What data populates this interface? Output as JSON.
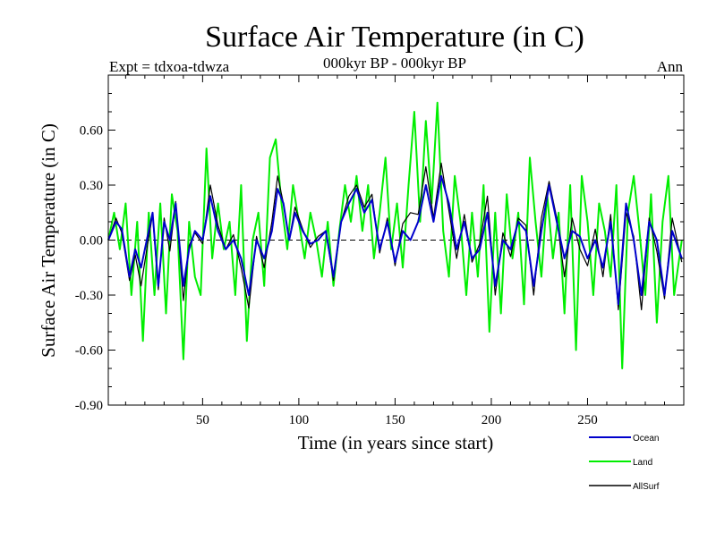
{
  "chart_data": {
    "type": "line",
    "title": "Surface Air Temperature (in C)",
    "subtitle": "000kyr BP - 000kyr BP",
    "left_label": "Expt = tdxoa-tdwza",
    "right_label": "Ann",
    "xlabel": "Time (in years since start)",
    "ylabel": "Surface Air Temperature (in C)",
    "xlim": [
      1,
      300
    ],
    "ylim": [
      -0.9,
      0.9
    ],
    "x_ticks": [
      50,
      100,
      150,
      200,
      250
    ],
    "x_tick_labels": [
      "50",
      "100",
      "150",
      "200",
      "250"
    ],
    "y_ticks": [
      -0.9,
      -0.6,
      -0.3,
      0.0,
      0.3,
      0.6
    ],
    "y_tick_labels": [
      "-0.90",
      "-0.60",
      "-0.30",
      "0.00",
      "0.30",
      "0.60"
    ],
    "zero_line": "dashed",
    "grid": false,
    "legend_position": "bottom-right, below plot",
    "series": [
      {
        "name": "Ocean",
        "color": "#0000cc",
        "x": [
          1,
          5,
          8,
          12,
          15,
          18,
          21,
          24,
          27,
          30,
          33,
          36,
          40,
          43,
          46,
          50,
          54,
          58,
          62,
          66,
          70,
          74,
          78,
          82,
          86,
          89,
          92,
          95,
          98,
          102,
          106,
          110,
          114,
          118,
          122,
          126,
          130,
          134,
          138,
          142,
          146,
          150,
          154,
          158,
          162,
          166,
          170,
          174,
          178,
          182,
          186,
          190,
          194,
          198,
          202,
          206,
          210,
          214,
          218,
          222,
          226,
          230,
          234,
          238,
          242,
          246,
          250,
          254,
          258,
          262,
          266,
          270,
          274,
          278,
          282,
          286,
          290,
          294,
          299
        ],
        "y": [
          0.0,
          0.1,
          0.06,
          -0.2,
          -0.05,
          -0.15,
          0.0,
          0.15,
          -0.25,
          0.1,
          0.0,
          0.2,
          -0.25,
          -0.05,
          0.05,
          0.0,
          0.24,
          0.05,
          -0.05,
          0.0,
          -0.1,
          -0.3,
          0.0,
          -0.1,
          0.05,
          0.28,
          0.2,
          0.0,
          0.15,
          0.05,
          -0.02,
          0.0,
          0.05,
          -0.2,
          0.1,
          0.2,
          0.28,
          0.15,
          0.22,
          -0.05,
          0.1,
          -0.12,
          0.05,
          0.0,
          0.1,
          0.3,
          0.1,
          0.35,
          0.2,
          -0.05,
          0.1,
          -0.1,
          -0.05,
          0.15,
          -0.25,
          0.0,
          -0.05,
          0.1,
          0.05,
          -0.25,
          0.05,
          0.3,
          0.1,
          -0.1,
          0.05,
          0.02,
          -0.1,
          0.0,
          -0.15,
          0.1,
          -0.35,
          0.2,
          0.0,
          -0.3,
          0.1,
          0.0,
          -0.3,
          0.05,
          -0.1
        ]
      },
      {
        "name": "Land",
        "color": "#00ee00",
        "x": [
          1,
          4,
          7,
          10,
          13,
          16,
          19,
          22,
          25,
          28,
          31,
          34,
          37,
          40,
          43,
          46,
          49,
          52,
          55,
          58,
          61,
          64,
          67,
          70,
          73,
          76,
          79,
          82,
          85,
          88,
          91,
          94,
          97,
          100,
          103,
          106,
          109,
          112,
          115,
          118,
          121,
          124,
          127,
          130,
          133,
          136,
          139,
          142,
          145,
          148,
          151,
          154,
          157,
          160,
          163,
          166,
          169,
          172,
          175,
          178,
          181,
          184,
          187,
          190,
          193,
          196,
          199,
          202,
          205,
          208,
          211,
          214,
          217,
          220,
          223,
          226,
          229,
          232,
          235,
          238,
          241,
          244,
          247,
          250,
          253,
          256,
          259,
          262,
          265,
          268,
          271,
          274,
          277,
          280,
          283,
          286,
          289,
          292,
          295,
          299
        ],
        "y": [
          0.0,
          0.15,
          -0.05,
          0.2,
          -0.3,
          0.1,
          -0.55,
          0.15,
          -0.3,
          0.2,
          -0.4,
          0.25,
          0.05,
          -0.65,
          0.1,
          -0.2,
          -0.3,
          0.5,
          -0.1,
          0.2,
          -0.05,
          0.1,
          -0.3,
          0.3,
          -0.55,
          0.0,
          0.15,
          -0.25,
          0.45,
          0.55,
          0.2,
          -0.05,
          0.3,
          0.1,
          -0.1,
          0.15,
          0.0,
          -0.2,
          0.1,
          -0.25,
          0.05,
          0.3,
          0.1,
          0.35,
          0.05,
          0.3,
          -0.1,
          0.15,
          0.45,
          -0.05,
          0.2,
          -0.15,
          0.3,
          0.7,
          0.1,
          0.65,
          0.2,
          0.75,
          0.05,
          -0.2,
          0.35,
          0.1,
          -0.3,
          0.15,
          -0.2,
          0.3,
          -0.5,
          0.15,
          -0.4,
          0.25,
          -0.1,
          0.15,
          -0.35,
          0.45,
          0.1,
          -0.2,
          0.25,
          -0.1,
          0.15,
          -0.4,
          0.3,
          -0.6,
          0.35,
          0.1,
          -0.3,
          0.2,
          0.05,
          -0.2,
          0.3,
          -0.7,
          0.15,
          0.35,
          0.05,
          -0.3,
          0.25,
          -0.45,
          0.1,
          0.35,
          -0.3,
          0.0
        ]
      },
      {
        "name": "AllSurf",
        "color": "#000000",
        "x": [
          1,
          5,
          8,
          12,
          15,
          18,
          21,
          24,
          27,
          30,
          33,
          36,
          40,
          43,
          46,
          50,
          54,
          58,
          62,
          66,
          70,
          74,
          78,
          82,
          86,
          89,
          92,
          95,
          98,
          102,
          106,
          110,
          114,
          118,
          122,
          126,
          130,
          134,
          138,
          142,
          146,
          150,
          154,
          158,
          162,
          166,
          170,
          174,
          178,
          182,
          186,
          190,
          194,
          198,
          202,
          206,
          210,
          214,
          218,
          222,
          226,
          230,
          234,
          238,
          242,
          246,
          250,
          254,
          258,
          262,
          266,
          270,
          274,
          278,
          282,
          286,
          290,
          294,
          299
        ],
        "y": [
          0.0,
          0.12,
          0.04,
          -0.22,
          -0.08,
          -0.25,
          -0.05,
          0.14,
          -0.27,
          0.12,
          -0.06,
          0.21,
          -0.33,
          -0.03,
          0.04,
          -0.02,
          0.3,
          0.08,
          -0.05,
          0.03,
          -0.15,
          -0.37,
          0.02,
          -0.15,
          0.1,
          0.35,
          0.2,
          0.0,
          0.18,
          0.06,
          -0.04,
          0.02,
          0.05,
          -0.22,
          0.1,
          0.24,
          0.3,
          0.18,
          0.25,
          -0.07,
          0.12,
          -0.14,
          0.09,
          0.15,
          0.14,
          0.4,
          0.12,
          0.42,
          0.16,
          -0.1,
          0.14,
          -0.12,
          -0.02,
          0.24,
          -0.3,
          0.04,
          -0.09,
          0.12,
          0.08,
          -0.3,
          0.12,
          0.32,
          0.12,
          -0.2,
          0.12,
          -0.05,
          -0.14,
          0.06,
          -0.2,
          0.14,
          -0.38,
          0.15,
          0.02,
          -0.38,
          0.12,
          -0.06,
          -0.32,
          0.12,
          -0.12
        ]
      }
    ]
  }
}
